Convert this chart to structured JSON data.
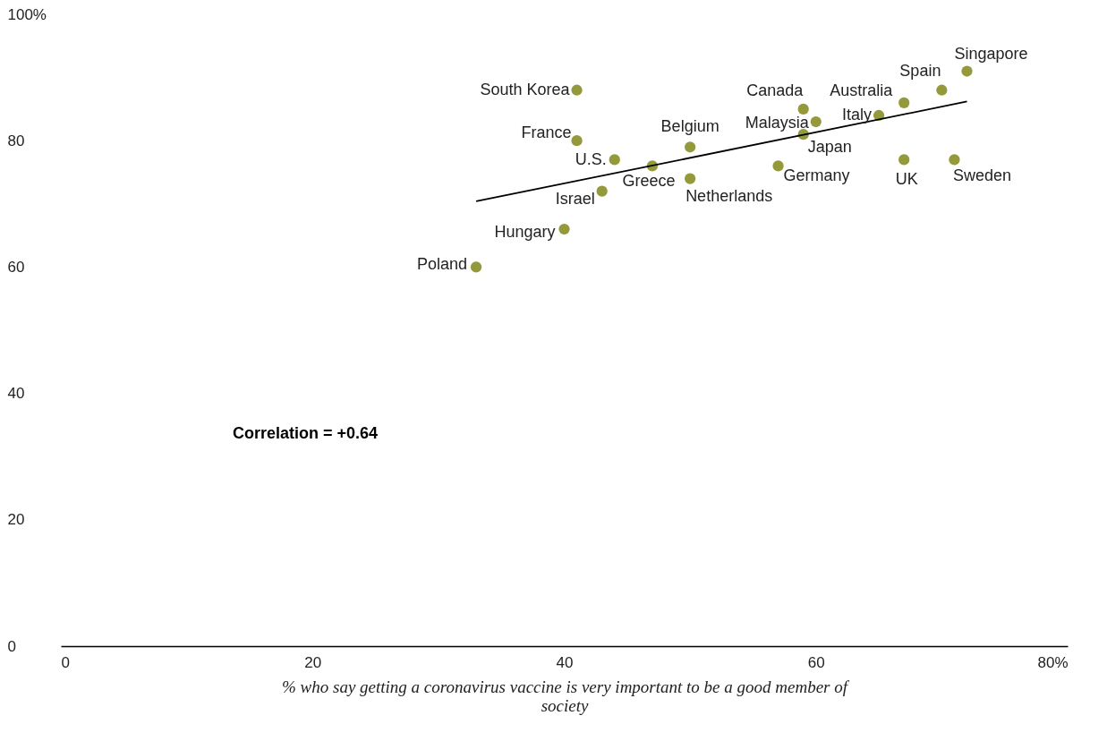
{
  "chart_data": {
    "type": "scatter",
    "xlabel": "% who say getting a coronavirus vaccine is very important to be a good member of society",
    "xlim": [
      0,
      80
    ],
    "xticks": [
      0,
      20,
      40,
      60,
      {
        "value": 80,
        "label": "80%"
      }
    ],
    "ylim": [
      0,
      100
    ],
    "yticks": [
      0,
      20,
      40,
      60,
      80,
      {
        "value": 100,
        "label": "100%"
      }
    ],
    "grid": false,
    "series": [
      {
        "marker": "circle",
        "color": "#949a3c",
        "x": [
          33,
          40,
          43,
          44,
          41,
          41,
          47,
          50,
          50,
          57,
          59,
          60,
          59,
          65,
          67,
          67,
          70,
          72,
          71
        ],
        "values": [
          60,
          66,
          72,
          77,
          80,
          88,
          76,
          79,
          74,
          76,
          85,
          83,
          81,
          84,
          86,
          77,
          88,
          91,
          77
        ]
      },
      {
        "type": "line",
        "marker": "none",
        "color": "#000000",
        "line_style": "solid",
        "x": [
          33,
          72
        ],
        "values": [
          70.4,
          86.2
        ]
      }
    ],
    "annotations": [
      {
        "text": "Poland",
        "x": 33,
        "y": 60
      },
      {
        "text": "Hungary",
        "x": 40,
        "y": 66
      },
      {
        "text": "Israel",
        "x": 43,
        "y": 72
      },
      {
        "text": "U.S.",
        "x": 44,
        "y": 77
      },
      {
        "text": "France",
        "x": 41,
        "y": 80
      },
      {
        "text": "South Korea",
        "x": 41,
        "y": 88
      },
      {
        "text": "Greece",
        "x": 47,
        "y": 76
      },
      {
        "text": "Belgium",
        "x": 50,
        "y": 79
      },
      {
        "text": "Netherlands",
        "x": 50,
        "y": 74
      },
      {
        "text": "Germany",
        "x": 57,
        "y": 76
      },
      {
        "text": "Canada",
        "x": 59,
        "y": 85
      },
      {
        "text": "Malaysia",
        "x": 60,
        "y": 83
      },
      {
        "text": "Japan",
        "x": 59,
        "y": 81
      },
      {
        "text": "Italy",
        "x": 65,
        "y": 84
      },
      {
        "text": "Australia",
        "x": 67,
        "y": 86
      },
      {
        "text": "UK",
        "x": 67,
        "y": 77
      },
      {
        "text": "Spain",
        "x": 70,
        "y": 88
      },
      {
        "text": "Singapore",
        "x": 72,
        "y": 91
      },
      {
        "text": "Sweden",
        "x": 71,
        "y": 77
      },
      "Correlation = +0.64"
    ]
  }
}
